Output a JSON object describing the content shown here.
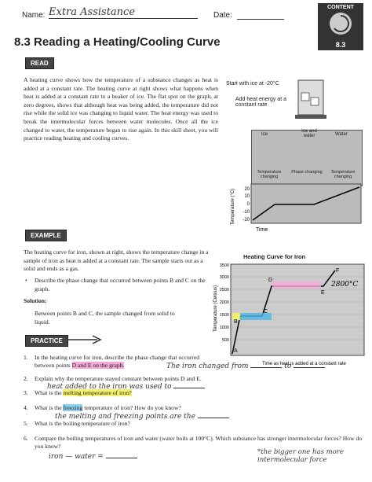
{
  "header": {
    "name_label": "Name:",
    "name_handwritten": "Extra Assistance",
    "date_label": "Date:",
    "badge_top": "CONTENT",
    "badge_number": "8.3",
    "title": "8.3 Reading a Heating/Cooling Curve"
  },
  "read": {
    "label": "READ",
    "paragraph": "A heating curve shows how the temperature of a substance changes as heat is added at a constant rate. The heating curve at right shows what happens when heat is added at a constant rate to a beaker of ice. The flat spot on the graph, at zero degrees, shows that although heat was being added, the temperature did not rise while the solid ice was changing to liquid water. The heat energy was used to break the intermolecular forces between water molecules. Once all the ice changed to water, the temperature began to rise again. In this skill sheet, you will practice reading heating and cooling curves."
  },
  "figure_ice": {
    "caption_start": "Start with ice at -20°C",
    "caption_heat": "Add heat energy at a constant rate",
    "panels": [
      "Ice",
      "Ice and water",
      "Water"
    ],
    "panel_notes": [
      "Temperature changing",
      "Phase changing",
      "Temperature changing"
    ],
    "y_label": "Temperature (°C)",
    "y_ticks": [
      "20",
      "10",
      "0",
      "-10",
      "-20"
    ],
    "x_label": "Time"
  },
  "example": {
    "label": "EXAMPLE",
    "paragraph": "The heating curve for iron, shown at right, shows the temperature change in a sample of iron as heat is added at a constant rate. The sample starts out as a solid and ends as a gas.",
    "bullet": "Describe the phase change that occurred between points B and C on the graph.",
    "solution_label": "Solution:",
    "solution": "Between points B and C, the sample changed from solid to liquid."
  },
  "figure_iron": {
    "title": "Heating Curve for Iron",
    "y_label": "Temperature (Celsius)",
    "y_ticks": [
      "3500",
      "3000",
      "2500",
      "2000",
      "1500",
      "1000",
      "500"
    ],
    "points": [
      "A",
      "B",
      "C",
      "D",
      "E",
      "F"
    ],
    "x_label": "Time as heat is added at a constant rate",
    "handwritten": "2800°C"
  },
  "practice": {
    "label": "PRACTICE",
    "questions": [
      {
        "number": "1.",
        "text": [
          "In the heating curve for iron, describe the phase change that occurred between points ",
          "D and E on the graph."
        ],
        "answer": "The iron changed from",
        "answer2": "to"
      },
      {
        "number": "2.",
        "text": [
          "Explain why the temperature stayed constant between points D and E."
        ],
        "answer": "heat added to the iron was used to"
      },
      {
        "number": "3.",
        "text": [
          "What is the ",
          "melting temperature of iron?"
        ]
      },
      {
        "number": "4.",
        "text": [
          "What is the ",
          "freezing",
          " temperature of iron? How do you know?"
        ],
        "answer": "the melting and freezing points are the"
      },
      {
        "number": "5.",
        "text": [
          "What is the boiling temperature of iron?"
        ]
      },
      {
        "number": "6.",
        "text": [
          "Compare the boiling temperatures of iron and water (water boils at 100°C). Which substance has stronger intermolecular forces? How do you know?"
        ],
        "answer": "iron —  water =",
        "answer2": "*the bigger one has more intermolecular force"
      }
    ]
  }
}
